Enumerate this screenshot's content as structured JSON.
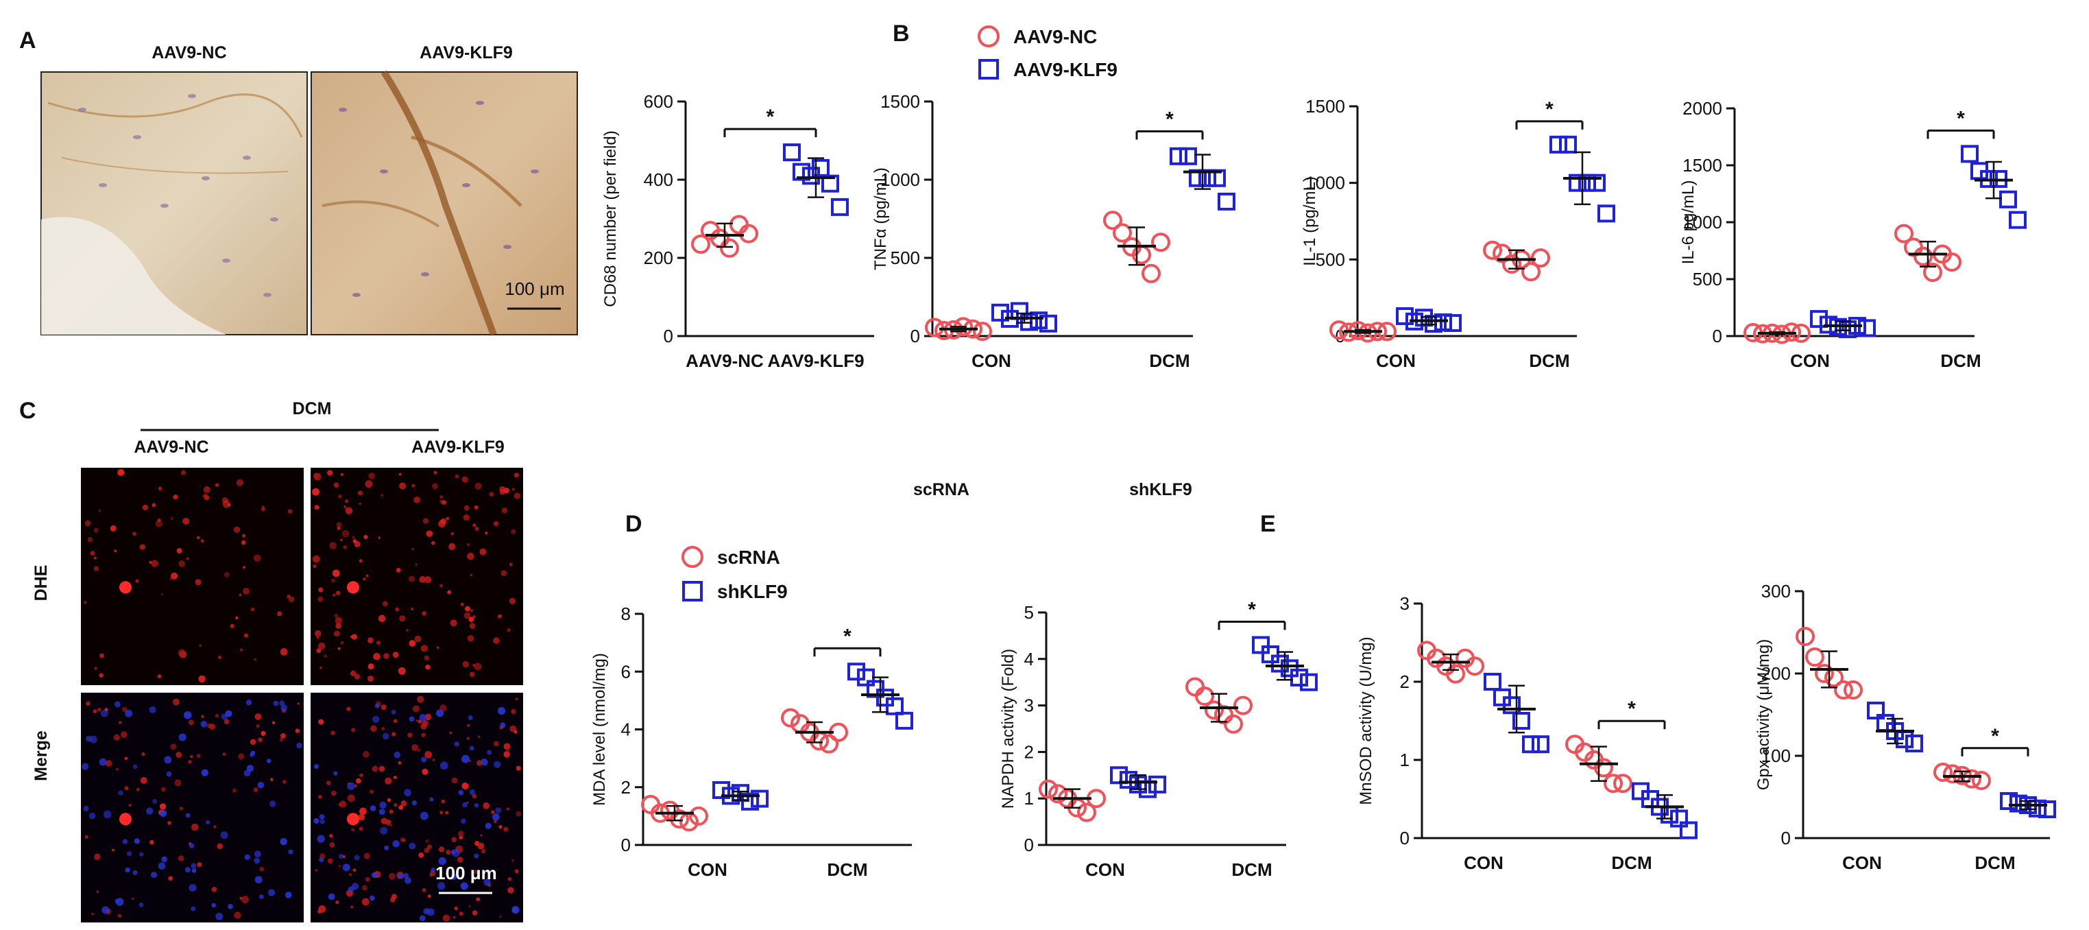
{
  "panels": {
    "A": {
      "letter": "A",
      "image_titles": [
        "AAV9-NC",
        "AAV9-KLF9"
      ],
      "scale_bar": "100 μm"
    },
    "B": {
      "letter": "B"
    },
    "C": {
      "letter": "C",
      "group_label": "DCM",
      "col_titles": [
        "AAV9-NC",
        "AAV9-KLF9"
      ],
      "row_labels": [
        "DHE",
        "Merge"
      ],
      "scale_bar": "100 μm"
    },
    "D": {
      "letter": "D"
    },
    "E": {
      "letter": "E"
    },
    "stray_labels": [
      "scRNA",
      "shKLF9"
    ]
  },
  "legends": {
    "B": [
      {
        "label": "AAV9-NC",
        "color": "#f0525a",
        "marker": "circle"
      },
      {
        "label": "AAV9-KLF9",
        "color": "#1f22d6",
        "marker": "square"
      }
    ],
    "D": [
      {
        "label": "scRNA",
        "color": "#f0525a",
        "marker": "circle"
      },
      {
        "label": "shKLF9",
        "color": "#1f22d6",
        "marker": "square"
      }
    ]
  },
  "chart_data": [
    {
      "type": "scatter",
      "panel": "A",
      "ylabel": "CD68 number (per field)",
      "ylim": [
        0,
        600
      ],
      "yticks": [
        0,
        200,
        400,
        600
      ],
      "categories": [
        "AAV9-NC",
        "AAV9-KLF9"
      ],
      "groups": [
        {
          "series": "AAV9-NC",
          "category": "AAV9-NC",
          "mean": 258,
          "sd": 30,
          "points": [
            235,
            270,
            250,
            225,
            285,
            262
          ]
        },
        {
          "series": "AAV9-KLF9",
          "category": "AAV9-KLF9",
          "mean": 405,
          "sd": 50,
          "points": [
            470,
            420,
            410,
            430,
            390,
            330
          ]
        }
      ],
      "significance": [
        {
          "between": [
            "AAV9-NC",
            "AAV9-KLF9"
          ],
          "label": "*"
        }
      ]
    },
    {
      "type": "scatter",
      "panel": "B",
      "ylabel": "TNFα (pg/mL)",
      "ylim": [
        0,
        1500
      ],
      "yticks": [
        0,
        500,
        1000,
        1500
      ],
      "categories": [
        "CON",
        "DCM"
      ],
      "groups": [
        {
          "series": "AAV9-NC",
          "category": "CON",
          "mean": 45,
          "sd": 15,
          "points": [
            55,
            35,
            40,
            60,
            45,
            30
          ]
        },
        {
          "series": "AAV9-KLF9",
          "category": "CON",
          "mean": 115,
          "sd": 30,
          "points": [
            150,
            110,
            160,
            90,
            100,
            80
          ]
        },
        {
          "series": "AAV9-NC",
          "category": "DCM",
          "mean": 575,
          "sd": 120,
          "points": [
            740,
            660,
            570,
            520,
            400,
            600
          ]
        },
        {
          "series": "AAV9-KLF9",
          "category": "DCM",
          "mean": 1050,
          "sd": 110,
          "points": [
            1150,
            1150,
            1010,
            1010,
            1010,
            860
          ]
        }
      ],
      "significance": [
        {
          "between": [
            "AAV9-NC",
            "AAV9-KLF9"
          ],
          "at": "DCM",
          "label": "*"
        }
      ]
    },
    {
      "type": "scatter",
      "panel": "B",
      "ylabel": "IL-1 (pg/mL)",
      "ylim": [
        0,
        1500
      ],
      "yticks": [
        0,
        500,
        1000,
        1500
      ],
      "categories": [
        "CON",
        "DCM"
      ],
      "groups": [
        {
          "series": "AAV9-NC",
          "category": "CON",
          "mean": 30,
          "sd": 10,
          "points": [
            40,
            25,
            35,
            20,
            30,
            30
          ]
        },
        {
          "series": "AAV9-KLF9",
          "category": "CON",
          "mean": 100,
          "sd": 25,
          "points": [
            130,
            95,
            120,
            80,
            90,
            85
          ]
        },
        {
          "series": "AAV9-NC",
          "category": "DCM",
          "mean": 500,
          "sd": 60,
          "points": [
            560,
            540,
            470,
            500,
            420,
            510
          ]
        },
        {
          "series": "AAV9-KLF9",
          "category": "DCM",
          "mean": 1030,
          "sd": 170,
          "points": [
            1250,
            1250,
            1000,
            1000,
            1000,
            800
          ]
        }
      ],
      "significance": [
        {
          "between": [
            "AAV9-NC",
            "AAV9-KLF9"
          ],
          "at": "DCM",
          "label": "*"
        }
      ]
    },
    {
      "type": "scatter",
      "panel": "B",
      "ylabel": "IL-6 pg/mL)",
      "ylim": [
        0,
        2000
      ],
      "yticks": [
        0,
        500,
        1000,
        1500,
        2000
      ],
      "categories": [
        "CON",
        "DCM"
      ],
      "groups": [
        {
          "series": "AAV9-NC",
          "category": "CON",
          "mean": 25,
          "sd": 10,
          "points": [
            30,
            20,
            25,
            15,
            35,
            25
          ]
        },
        {
          "series": "AAV9-KLF9",
          "category": "CON",
          "mean": 90,
          "sd": 40,
          "points": [
            150,
            100,
            80,
            60,
            90,
            70
          ]
        },
        {
          "series": "AAV9-NC",
          "category": "DCM",
          "mean": 720,
          "sd": 110,
          "points": [
            900,
            780,
            700,
            560,
            720,
            650
          ]
        },
        {
          "series": "AAV9-KLF9",
          "category": "DCM",
          "mean": 1370,
          "sd": 160,
          "points": [
            1600,
            1450,
            1380,
            1380,
            1200,
            1020
          ]
        }
      ],
      "significance": [
        {
          "between": [
            "AAV9-NC",
            "AAV9-KLF9"
          ],
          "at": "DCM",
          "label": "*"
        }
      ]
    },
    {
      "type": "scatter",
      "panel": "D",
      "ylabel": "MDA level  (nmol/mg)",
      "ylim": [
        0,
        8
      ],
      "yticks": [
        0,
        2,
        4,
        6,
        8
      ],
      "categories": [
        "CON",
        "DCM"
      ],
      "groups": [
        {
          "series": "scRNA",
          "category": "CON",
          "mean": 1.1,
          "sd": 0.25,
          "points": [
            1.4,
            1.1,
            1.2,
            0.9,
            0.8,
            1.0
          ]
        },
        {
          "series": "shKLF9",
          "category": "CON",
          "mean": 1.7,
          "sd": 0.15,
          "points": [
            1.9,
            1.7,
            1.8,
            1.5,
            1.6
          ]
        },
        {
          "series": "scRNA",
          "category": "DCM",
          "mean": 3.9,
          "sd": 0.35,
          "points": [
            4.4,
            4.2,
            3.9,
            3.6,
            3.5,
            3.9
          ]
        },
        {
          "series": "shKLF9",
          "category": "DCM",
          "mean": 5.2,
          "sd": 0.6,
          "points": [
            6.0,
            5.8,
            5.4,
            5.1,
            4.8,
            4.3
          ]
        }
      ],
      "significance": [
        {
          "between": [
            "scRNA",
            "shKLF9"
          ],
          "at": "DCM",
          "label": "*"
        }
      ]
    },
    {
      "type": "scatter",
      "panel": "D",
      "ylabel": "NAPDH activity (Fold)",
      "ylim": [
        0,
        5
      ],
      "yticks": [
        0,
        1,
        2,
        3,
        4,
        5
      ],
      "categories": [
        "CON",
        "DCM"
      ],
      "groups": [
        {
          "series": "scRNA",
          "category": "CON",
          "mean": 1.0,
          "sd": 0.2,
          "points": [
            1.2,
            1.1,
            1.0,
            0.8,
            0.7,
            1.0
          ]
        },
        {
          "series": "shKLF9",
          "category": "CON",
          "mean": 1.35,
          "sd": 0.15,
          "points": [
            1.5,
            1.4,
            1.3,
            1.2,
            1.3
          ]
        },
        {
          "series": "scRNA",
          "category": "DCM",
          "mean": 2.95,
          "sd": 0.3,
          "points": [
            3.4,
            3.2,
            2.9,
            2.8,
            2.6,
            3.0
          ]
        },
        {
          "series": "shKLF9",
          "category": "DCM",
          "mean": 3.85,
          "sd": 0.3,
          "points": [
            4.3,
            4.1,
            3.9,
            3.8,
            3.6,
            3.5
          ]
        }
      ],
      "significance": [
        {
          "between": [
            "scRNA",
            "shKLF9"
          ],
          "at": "DCM",
          "label": "*"
        }
      ]
    },
    {
      "type": "scatter",
      "panel": "E",
      "ylabel": "MnSOD activity (U/mg)",
      "ylim": [
        0,
        3
      ],
      "yticks": [
        0,
        1,
        2,
        3
      ],
      "categories": [
        "CON",
        "DCM"
      ],
      "groups": [
        {
          "series": "scRNA",
          "category": "CON",
          "mean": 2.25,
          "sd": 0.1,
          "points": [
            2.4,
            2.3,
            2.2,
            2.1,
            2.3,
            2.2
          ]
        },
        {
          "series": "shKLF9",
          "category": "CON",
          "mean": 1.65,
          "sd": 0.3,
          "points": [
            2.0,
            1.8,
            1.7,
            1.5,
            1.2,
            1.2
          ]
        },
        {
          "series": "scRNA",
          "category": "DCM",
          "mean": 0.95,
          "sd": 0.22,
          "points": [
            1.2,
            1.1,
            1.0,
            0.9,
            0.7,
            0.7
          ]
        },
        {
          "series": "shKLF9",
          "category": "DCM",
          "mean": 0.4,
          "sd": 0.15,
          "points": [
            0.6,
            0.5,
            0.4,
            0.3,
            0.25,
            0.1
          ]
        }
      ],
      "significance": [
        {
          "between": [
            "scRNA",
            "shKLF9"
          ],
          "at": "DCM",
          "label": "*"
        }
      ]
    },
    {
      "type": "scatter",
      "panel": "E",
      "ylabel": "Gpx activity (μM/mg)",
      "ylim": [
        0,
        300
      ],
      "yticks": [
        0,
        100,
        200,
        300
      ],
      "categories": [
        "CON",
        "DCM"
      ],
      "groups": [
        {
          "series": "scRNA",
          "category": "CON",
          "mean": 205,
          "sd": 22,
          "points": [
            245,
            220,
            200,
            195,
            180,
            180
          ]
        },
        {
          "series": "shKLF9",
          "category": "CON",
          "mean": 130,
          "sd": 15,
          "points": [
            155,
            140,
            130,
            120,
            115
          ]
        },
        {
          "series": "scRNA",
          "category": "DCM",
          "mean": 75,
          "sd": 6,
          "points": [
            80,
            78,
            76,
            72,
            70
          ]
        },
        {
          "series": "shKLF9",
          "category": "DCM",
          "mean": 40,
          "sd": 5,
          "points": [
            45,
            42,
            40,
            36,
            35
          ]
        }
      ],
      "significance": [
        {
          "between": [
            "scRNA",
            "shKLF9"
          ],
          "at": "DCM",
          "label": "*"
        }
      ]
    }
  ],
  "colors": {
    "red": "#f0525a",
    "blue": "#1f22d6",
    "axis": "#111111"
  }
}
